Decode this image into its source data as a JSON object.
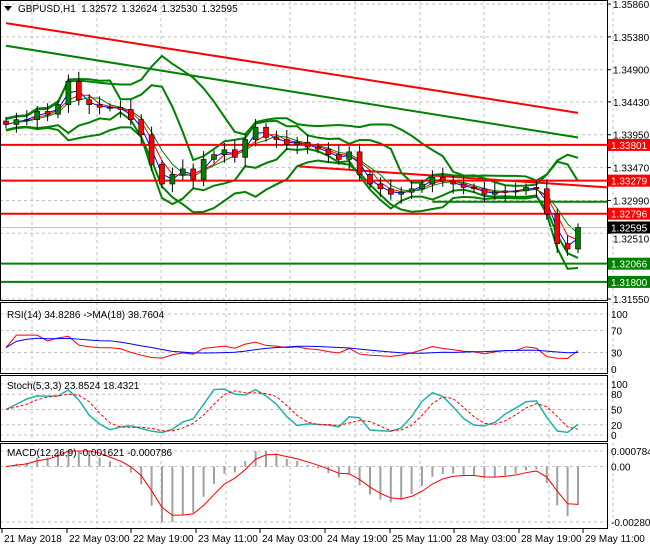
{
  "header": {
    "symbol_label": "GBPUSD,H1",
    "open": "1.32572",
    "high": "1.32624",
    "low": "1.32530",
    "close": "1.32595"
  },
  "colors": {
    "bull": "#008000",
    "bear": "#ff0000",
    "grid": "#c0c0c0",
    "resistance": "#ff0000",
    "support": "#008000",
    "ma_fast": "#0000ff",
    "ma_mid": "#ff0000",
    "ma_slow": "#008000",
    "stoch_main": "#20b2aa",
    "rsi": "#ff0000",
    "rsi_ma": "#0000ff"
  },
  "chart_data": [
    {
      "type": "candlestick",
      "title": "GBPUSD,H1",
      "ylim": [
        1.3155,
        1.3586
      ],
      "y_ticks": [
        "1.35860",
        "1.35380",
        "1.34900",
        "1.34430",
        "1.33950",
        "1.33470",
        "1.32990",
        "1.32510",
        "1.31550"
      ],
      "x_ticks": [
        "21 May 2018",
        "22 May 03:00",
        "22 May 19:00",
        "23 May 11:00",
        "24 May 03:00",
        "24 May 19:00",
        "25 May 11:00",
        "28 May 03:00",
        "28 May 19:00",
        "29 May 11:00"
      ],
      "closes": [
        1.341,
        1.3417,
        1.3417,
        1.3429,
        1.3425,
        1.3439,
        1.3473,
        1.3446,
        1.3439,
        1.3435,
        1.3435,
        1.3432,
        1.3417,
        1.3395,
        1.3352,
        1.3323,
        1.3337,
        1.3345,
        1.333,
        1.3359,
        1.3366,
        1.3373,
        1.3362,
        1.3388,
        1.3406,
        1.3391,
        1.3388,
        1.3381,
        1.3384,
        1.3377,
        1.3374,
        1.3366,
        1.3359,
        1.337,
        1.3337,
        1.3323,
        1.3316,
        1.3308,
        1.3311,
        1.3316,
        1.3323,
        1.3333,
        1.3327,
        1.3323,
        1.3318,
        1.3316,
        1.3308,
        1.3311,
        1.3313,
        1.3313,
        1.3318,
        1.3316,
        1.3279,
        1.3236,
        1.3228,
        1.32595
      ],
      "levels": [
        {
          "price": 1.33801,
          "label": "1.33801",
          "kind": "resistance"
        },
        {
          "price": 1.33279,
          "label": "1.33279",
          "kind": "resistance"
        },
        {
          "price": 1.32796,
          "label": "1.32796",
          "kind": "resistance"
        },
        {
          "price": 1.32066,
          "label": "1.32066",
          "kind": "support"
        },
        {
          "price": 1.318,
          "label": "1.31800",
          "kind": "support"
        }
      ],
      "current_price": {
        "price": 1.32595,
        "label": "1.32595"
      },
      "trendlines": [
        {
          "color": "#ff0000",
          "from": [
            0,
            1.3558
          ],
          "to": [
            55,
            1.3427
          ]
        },
        {
          "color": "#008000",
          "from": [
            0,
            1.3525
          ],
          "to": [
            55,
            1.3391
          ]
        },
        {
          "color": "#ff0000",
          "from": [
            28,
            1.3349
          ],
          "to": [
            58,
            1.3318
          ]
        },
        {
          "color": "#008000",
          "from": [
            41,
            1.3297
          ],
          "to": [
            58,
            1.3297
          ]
        }
      ]
    },
    {
      "type": "line",
      "title": "RSI(14) 34.8286  ->MA(18) 38.7604",
      "ylim": [
        0,
        100
      ],
      "y_ticks": [
        "100",
        "70",
        "30",
        "0"
      ]
    },
    {
      "type": "line",
      "title": "Stoch(5,3,3) 23.8524 18.4321",
      "ylim": [
        0,
        100
      ],
      "y_ticks": [
        "100",
        "80",
        "50",
        "20",
        "0"
      ]
    },
    {
      "type": "bar",
      "title": "MACD(12,26,9) -0.001621 -0.000786",
      "ylim": [
        -0.002806,
        0.000784
      ],
      "y_ticks": [
        "0.000784",
        "0.00",
        "-0.002806"
      ]
    }
  ]
}
